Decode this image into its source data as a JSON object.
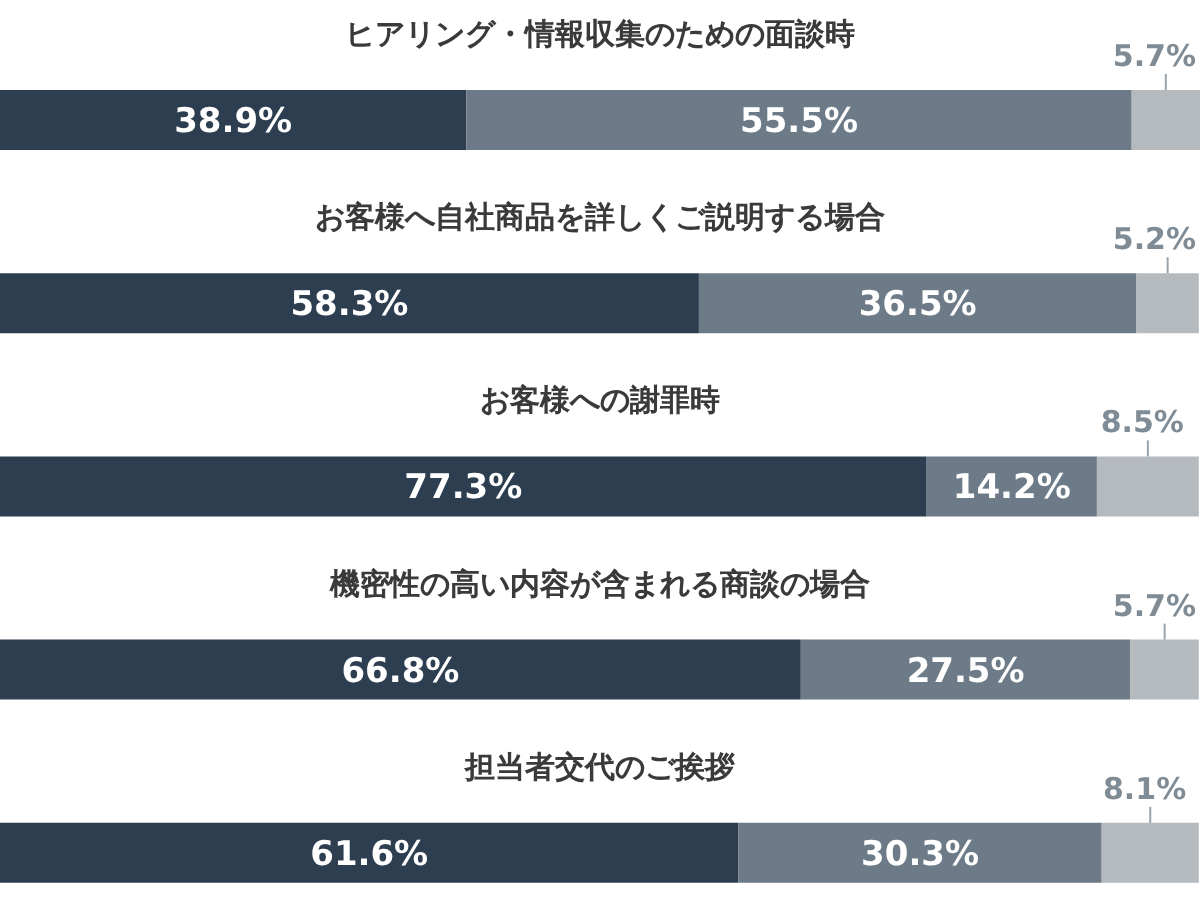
{
  "chart_data": {
    "type": "bar",
    "orientation": "horizontal",
    "stacked": true,
    "categories": [
      "ヒアリング・情報収集のための面談時",
      "お客様へ自社商品を詳しくご説明する場合",
      "お客様への謝罪時",
      "機密性の高い内容が含まれる商談の場合",
      "担当者交代のご挨拶"
    ],
    "series": [
      {
        "color": "#2c3e4f",
        "values": [
          38.9,
          58.3,
          77.3,
          66.8,
          61.6
        ],
        "value_labels": [
          "38.9%",
          "58.3%",
          "77.3%",
          "66.8%",
          "61.6%"
        ]
      },
      {
        "color": "#6c7b87",
        "values": [
          55.5,
          36.5,
          14.2,
          27.5,
          30.3
        ],
        "value_labels": [
          "55.5%",
          "36.5%",
          "14.2%",
          "27.5%",
          "30.3%"
        ]
      },
      {
        "color": "#b5babf",
        "values": [
          5.7,
          5.2,
          8.5,
          5.7,
          8.1
        ],
        "value_labels": [
          "5.7%",
          "5.2%",
          "8.5%",
          "5.7%",
          "8.1%"
        ]
      }
    ]
  }
}
